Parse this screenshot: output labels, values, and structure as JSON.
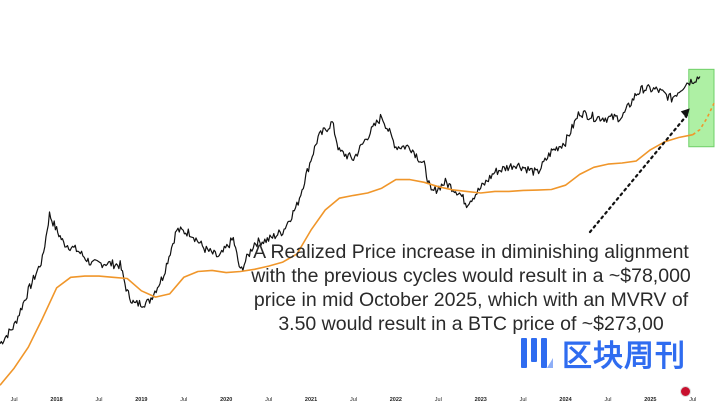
{
  "chart_data": {
    "type": "line",
    "title": "",
    "xlabel": "",
    "ylabel": "",
    "x_ticks": [
      "Jul",
      "2018",
      "Jul",
      "2019",
      "Jul",
      "2020",
      "Jul",
      "2021",
      "Jul",
      "2022",
      "Jul",
      "2023",
      "Jul",
      "2024",
      "Jul",
      "2025",
      "Jul"
    ],
    "x_range": [
      "2017-05",
      "2025-10"
    ],
    "y_scale": "log",
    "y_range": [
      900,
      320000
    ],
    "grid": false,
    "series": [
      {
        "id": "btc-price",
        "color": "#111111",
        "x": [
          "2017-05",
          "2017-07",
          "2017-09",
          "2017-11",
          "2017-12",
          "2018-01",
          "2018-02",
          "2018-04",
          "2018-06",
          "2018-08",
          "2018-10",
          "2018-11",
          "2018-12",
          "2019-02",
          "2019-04",
          "2019-06",
          "2019-08",
          "2019-10",
          "2019-12",
          "2020-02",
          "2020-03",
          "2020-05",
          "2020-07",
          "2020-09",
          "2020-11",
          "2021-01",
          "2021-02",
          "2021-04",
          "2021-05",
          "2021-07",
          "2021-09",
          "2021-11",
          "2022-01",
          "2022-03",
          "2022-05",
          "2022-06",
          "2022-08",
          "2022-10",
          "2022-11",
          "2023-01",
          "2023-03",
          "2023-06",
          "2023-09",
          "2023-11",
          "2024-01",
          "2024-03",
          "2024-05",
          "2024-07",
          "2024-09",
          "2024-11",
          "2024-12",
          "2025-02",
          "2025-04",
          "2025-06",
          "2025-08"
        ],
        "y": [
          1900,
          2500,
          4300,
          7000,
          14000,
          11000,
          9000,
          8000,
          6500,
          6600,
          6400,
          4200,
          3500,
          3600,
          5300,
          11000,
          10500,
          8200,
          7200,
          9600,
          5800,
          9000,
          9500,
          10800,
          16000,
          33000,
          46000,
          58000,
          37000,
          33000,
          47000,
          64000,
          40000,
          40000,
          30000,
          19500,
          23000,
          19500,
          16500,
          21000,
          27000,
          30500,
          26500,
          37000,
          43000,
          68000,
          63000,
          62000,
          63000,
          90000,
          98000,
          96000,
          84000,
          106000,
          118000
        ]
      },
      {
        "id": "realized-price",
        "color": "#f0962a",
        "x": [
          "2017-05",
          "2017-07",
          "2017-09",
          "2017-11",
          "2018-01",
          "2018-03",
          "2018-05",
          "2018-07",
          "2018-09",
          "2018-11",
          "2019-01",
          "2019-03",
          "2019-05",
          "2019-07",
          "2019-09",
          "2019-11",
          "2020-01",
          "2020-03",
          "2020-05",
          "2020-07",
          "2020-09",
          "2020-11",
          "2021-01",
          "2021-03",
          "2021-05",
          "2021-07",
          "2021-09",
          "2021-11",
          "2022-01",
          "2022-03",
          "2022-05",
          "2022-07",
          "2022-09",
          "2022-11",
          "2023-01",
          "2023-03",
          "2023-05",
          "2023-07",
          "2023-09",
          "2023-11",
          "2024-01",
          "2024-03",
          "2024-05",
          "2024-07",
          "2024-09",
          "2024-11",
          "2025-01",
          "2025-03",
          "2025-05",
          "2025-07"
        ],
        "y": [
          1000,
          1300,
          1800,
          2800,
          4500,
          5300,
          5400,
          5400,
          5300,
          5200,
          4300,
          3900,
          4100,
          5300,
          5800,
          5900,
          5700,
          5800,
          6000,
          6300,
          6700,
          7600,
          11000,
          15000,
          18000,
          18800,
          19500,
          21000,
          24000,
          24000,
          23000,
          21500,
          20500,
          20000,
          19500,
          20000,
          20000,
          20300,
          20400,
          20600,
          22000,
          26000,
          29000,
          30500,
          31000,
          32000,
          38000,
          43000,
          46000,
          48000
        ]
      },
      {
        "id": "realized-price-projection",
        "color": "#f0962a",
        "dashed": true,
        "x": [
          "2025-07",
          "2025-08",
          "2025-09",
          "2025-10"
        ],
        "y": [
          48000,
          52000,
          62000,
          78000
        ]
      }
    ],
    "annotations": [
      "A Realized Price increase in diminishing alignment",
      "with the previous cycles would result in a ~$78,000",
      "price in mid October 2025, which with an MVRV of",
      "3.50 would result in a BTC price of ~$273,00"
    ],
    "projection_box": {
      "color": "#aef0a4",
      "border": "#6fcf68"
    }
  },
  "brand": {
    "logo_text": "区块周刊",
    "logo_color": "#2f6cf0"
  },
  "flag_icon": "uk-flag-icon"
}
